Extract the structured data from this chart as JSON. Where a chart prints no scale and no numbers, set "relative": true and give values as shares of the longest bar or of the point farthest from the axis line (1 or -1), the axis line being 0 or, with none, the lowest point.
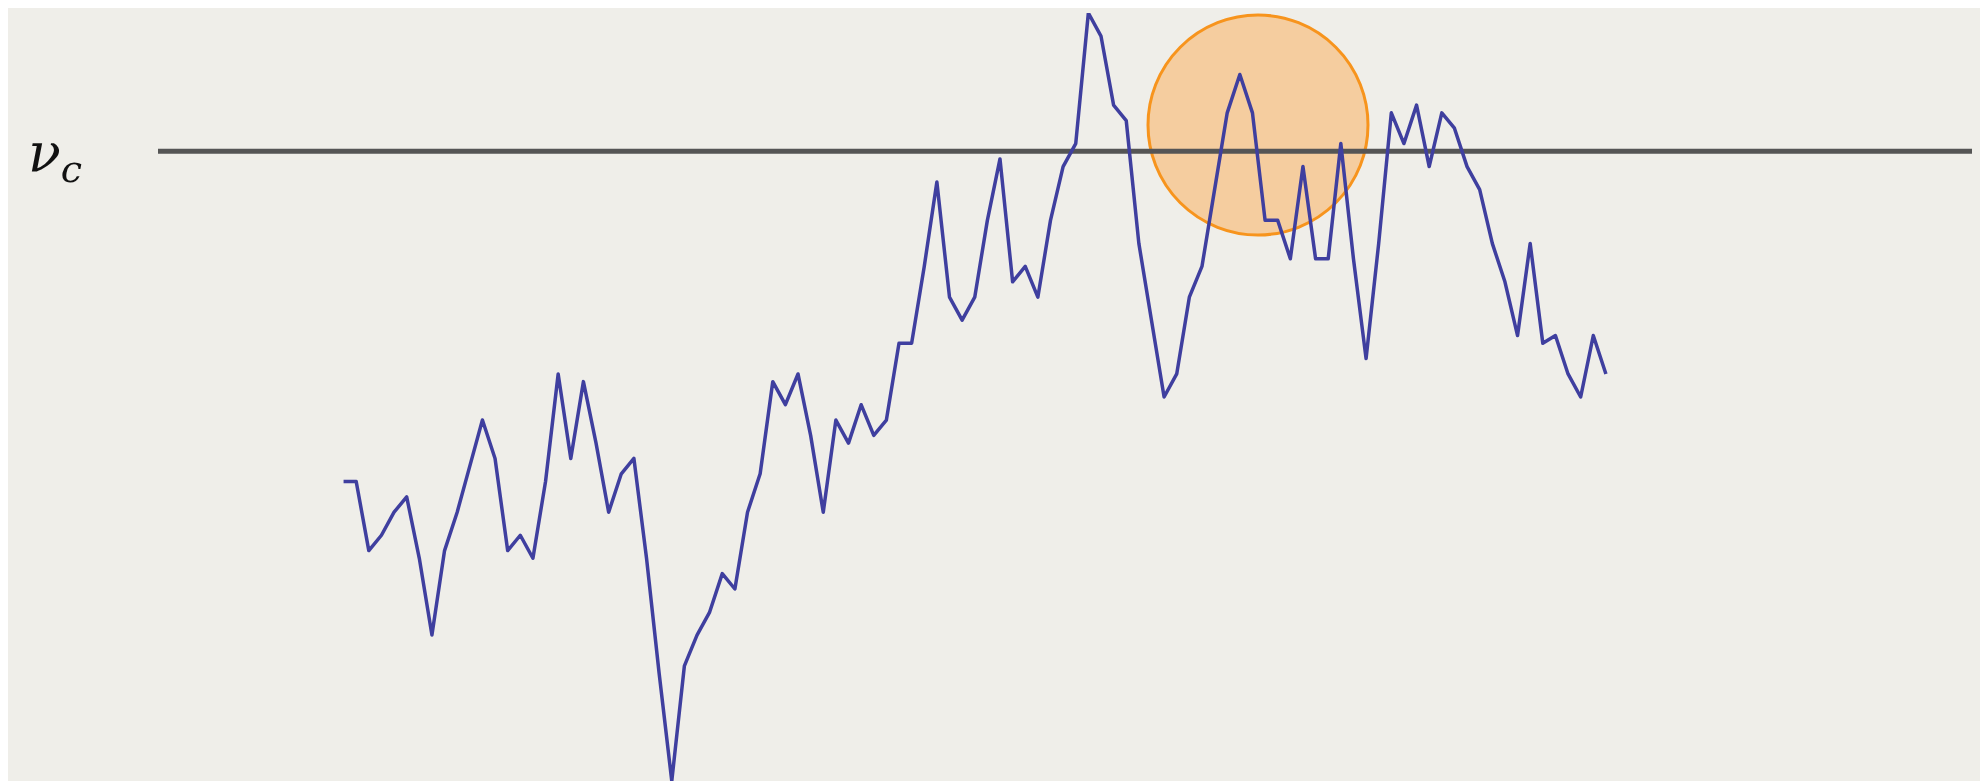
{
  "chart_data": {
    "type": "line",
    "relative": true,
    "marker": "none",
    "line_style": "solid",
    "tick_labels": false,
    "categories": [
      null,
      null,
      null,
      null,
      null,
      null,
      null,
      null,
      null,
      null,
      null,
      null,
      null,
      null,
      null,
      null,
      null,
      null,
      null,
      null,
      null,
      null,
      null,
      null,
      null,
      null,
      null,
      null,
      null,
      null,
      null,
      null,
      null,
      null,
      null,
      null,
      null,
      null,
      null,
      null,
      null,
      null,
      null,
      null,
      null,
      null,
      null,
      null,
      null,
      null,
      null,
      null,
      null,
      null,
      null,
      null,
      null,
      null,
      null,
      null,
      null,
      null,
      null,
      null,
      null,
      null,
      null,
      null,
      null,
      null,
      null,
      null,
      null,
      null,
      null,
      null,
      null,
      null,
      null,
      null,
      null,
      null,
      null,
      null,
      null,
      null,
      null,
      null,
      null,
      null,
      null,
      null,
      null,
      null,
      null,
      null,
      null,
      null,
      null,
      null,
      null
    ],
    "series": [
      {
        "color": "#3f3f9f",
        "values": [
          0.39,
          0.39,
          0.3,
          0.32,
          0.35,
          0.37,
          0.29,
          0.19,
          0.3,
          0.35,
          0.41,
          0.47,
          0.42,
          0.3,
          0.32,
          0.29,
          0.39,
          0.53,
          0.42,
          0.52,
          0.44,
          0.35,
          0.4,
          0.42,
          0.29,
          0.14,
          0,
          0.15,
          0.19,
          0.22,
          0.27,
          0.25,
          0.35,
          0.4,
          0.52,
          0.49,
          0.53,
          0.45,
          0.35,
          0.47,
          0.44,
          0.49,
          0.45,
          0.47,
          0.57,
          0.57,
          0.67,
          0.78,
          0.63,
          0.6,
          0.63,
          0.73,
          0.81,
          0.65,
          0.67,
          0.63,
          0.73,
          0.8,
          0.83,
          1,
          0.97,
          0.88,
          0.86,
          0.7,
          0.6,
          0.5,
          0.53,
          0.63,
          0.67,
          0.77,
          0.87,
          0.92,
          0.87,
          0.73,
          0.73,
          0.68,
          0.8,
          0.68,
          0.68,
          0.83,
          0.68,
          0.55,
          0.7,
          0.87,
          0.83,
          0.88,
          0.8,
          0.87,
          0.85,
          0.8,
          0.77,
          0.7,
          0.65,
          0.58,
          0.7,
          0.57,
          0.58,
          0.53,
          0.5,
          0.58,
          0.53
        ]
      }
    ],
    "ref_lines": [
      {
        "axis": "y",
        "value": 0.82,
        "label": "ν$_{c}$",
        "color": "#555555"
      }
    ]
  }
}
